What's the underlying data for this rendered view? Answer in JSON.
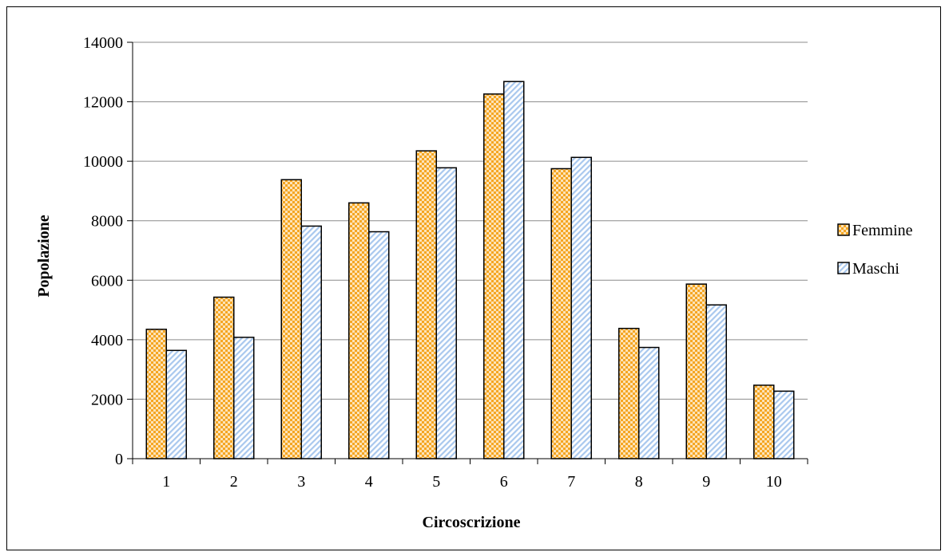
{
  "chart_data": {
    "type": "bar",
    "xlabel": "Circoscrizione",
    "ylabel": "Popolazione",
    "categories": [
      "1",
      "2",
      "3",
      "4",
      "5",
      "6",
      "7",
      "8",
      "9",
      "10"
    ],
    "series": [
      {
        "name": "Femmine",
        "values": [
          4350,
          5430,
          9380,
          8600,
          10350,
          12260,
          9750,
          4380,
          5870,
          2470
        ],
        "color": "#f5a623",
        "pattern": "checker"
      },
      {
        "name": "Maschi",
        "values": [
          3640,
          4080,
          7820,
          7630,
          9780,
          12680,
          10130,
          3740,
          5170,
          2270
        ],
        "color": "#a9c8ee",
        "pattern": "diagonal"
      }
    ],
    "ylim": [
      0,
      14000
    ],
    "yticks": [
      0,
      2000,
      4000,
      6000,
      8000,
      10000,
      12000,
      14000
    ],
    "grid": true,
    "legend_position": "right"
  }
}
